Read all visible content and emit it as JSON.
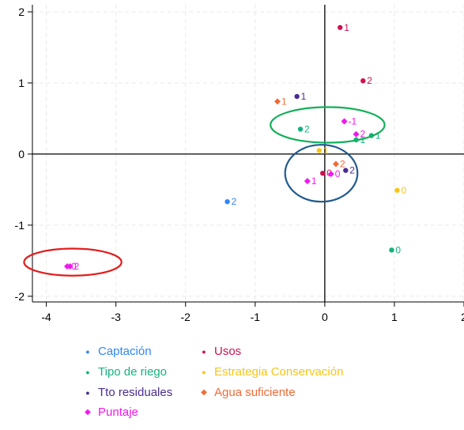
{
  "chart_data": {
    "type": "scatter",
    "title": "",
    "xlabel": "",
    "ylabel": "",
    "xlim": [
      -4.2,
      2.0
    ],
    "ylim": [
      -2.08,
      2.1
    ],
    "x_ticks": [
      -4,
      -3,
      -2,
      -1,
      0,
      1,
      2
    ],
    "y_ticks": [
      -2,
      -1,
      0,
      1,
      2
    ],
    "grid": true,
    "reference_lines": {
      "x": 0,
      "y": 0
    },
    "legend_position": "bottom",
    "series": [
      {
        "name": "Captación",
        "color": "#2f86f6",
        "marker": "circle",
        "points": [
          {
            "x": -1.4,
            "y": -0.67,
            "label": "2"
          }
        ]
      },
      {
        "name": "Usos",
        "color": "#d0104f",
        "marker": "circle",
        "points": [
          {
            "x": 0.22,
            "y": 1.78,
            "label": "1"
          },
          {
            "x": 0.55,
            "y": 1.03,
            "label": "2"
          },
          {
            "x": -0.03,
            "y": -0.27,
            "label": "0"
          }
        ]
      },
      {
        "name": "Tipo de riego",
        "color": "#13b37e",
        "marker": "circle",
        "points": [
          {
            "x": -0.35,
            "y": 0.35,
            "label": "2"
          },
          {
            "x": 0.45,
            "y": 0.2,
            "label": "1"
          },
          {
            "x": 0.67,
            "y": 0.26,
            "label": "1"
          },
          {
            "x": 0.96,
            "y": -1.35,
            "label": "0"
          }
        ]
      },
      {
        "name": "Estrategia Conservación",
        "color": "#f7c514",
        "marker": "circle",
        "points": [
          {
            "x": -0.08,
            "y": 0.05,
            "label": "1"
          },
          {
            "x": 1.04,
            "y": -0.51,
            "label": "0"
          }
        ]
      },
      {
        "name": "Tto residuales",
        "color": "#4a2c91",
        "marker": "circle",
        "points": [
          {
            "x": -0.4,
            "y": 0.81,
            "label": "1"
          },
          {
            "x": 0.3,
            "y": -0.23,
            "label": "2"
          }
        ]
      },
      {
        "name": "Agua suficiente",
        "color": "#f26a35",
        "marker": "diamond",
        "points": [
          {
            "x": -0.68,
            "y": 0.74,
            "label": "1"
          },
          {
            "x": 0.16,
            "y": -0.14,
            "label": "2"
          }
        ]
      },
      {
        "name": "Puntaje",
        "color": "#f316f0",
        "marker": "diamond",
        "points": [
          {
            "x": 0.28,
            "y": 0.46,
            "label": "-1"
          },
          {
            "x": 0.45,
            "y": 0.28,
            "label": "2"
          },
          {
            "x": -0.25,
            "y": -0.38,
            "label": "1"
          },
          {
            "x": 0.09,
            "y": -0.28,
            "label": "0"
          },
          {
            "x": -3.7,
            "y": -1.58,
            "label": "0"
          },
          {
            "x": -3.66,
            "y": -1.58,
            "label": "2"
          }
        ]
      }
    ],
    "annotations": [
      {
        "shape": "ellipse",
        "color": "#12b05a",
        "cx": 0.04,
        "cy": 0.41,
        "rx": 0.82,
        "ry": 0.25
      },
      {
        "shape": "ellipse",
        "color": "#205a8f",
        "cx": -0.05,
        "cy": -0.27,
        "rx": 0.52,
        "ry": 0.4
      },
      {
        "shape": "ellipse",
        "color": "#e31c1c",
        "cx": -3.62,
        "cy": -1.52,
        "rx": 0.7,
        "ry": 0.19
      }
    ]
  },
  "legend": {
    "columns": [
      [
        "Captación",
        "Tipo de riego",
        "Tto residuales",
        "Puntaje"
      ],
      [
        "Usos",
        "Estrategia Conservación",
        "Agua suficiente"
      ]
    ]
  }
}
